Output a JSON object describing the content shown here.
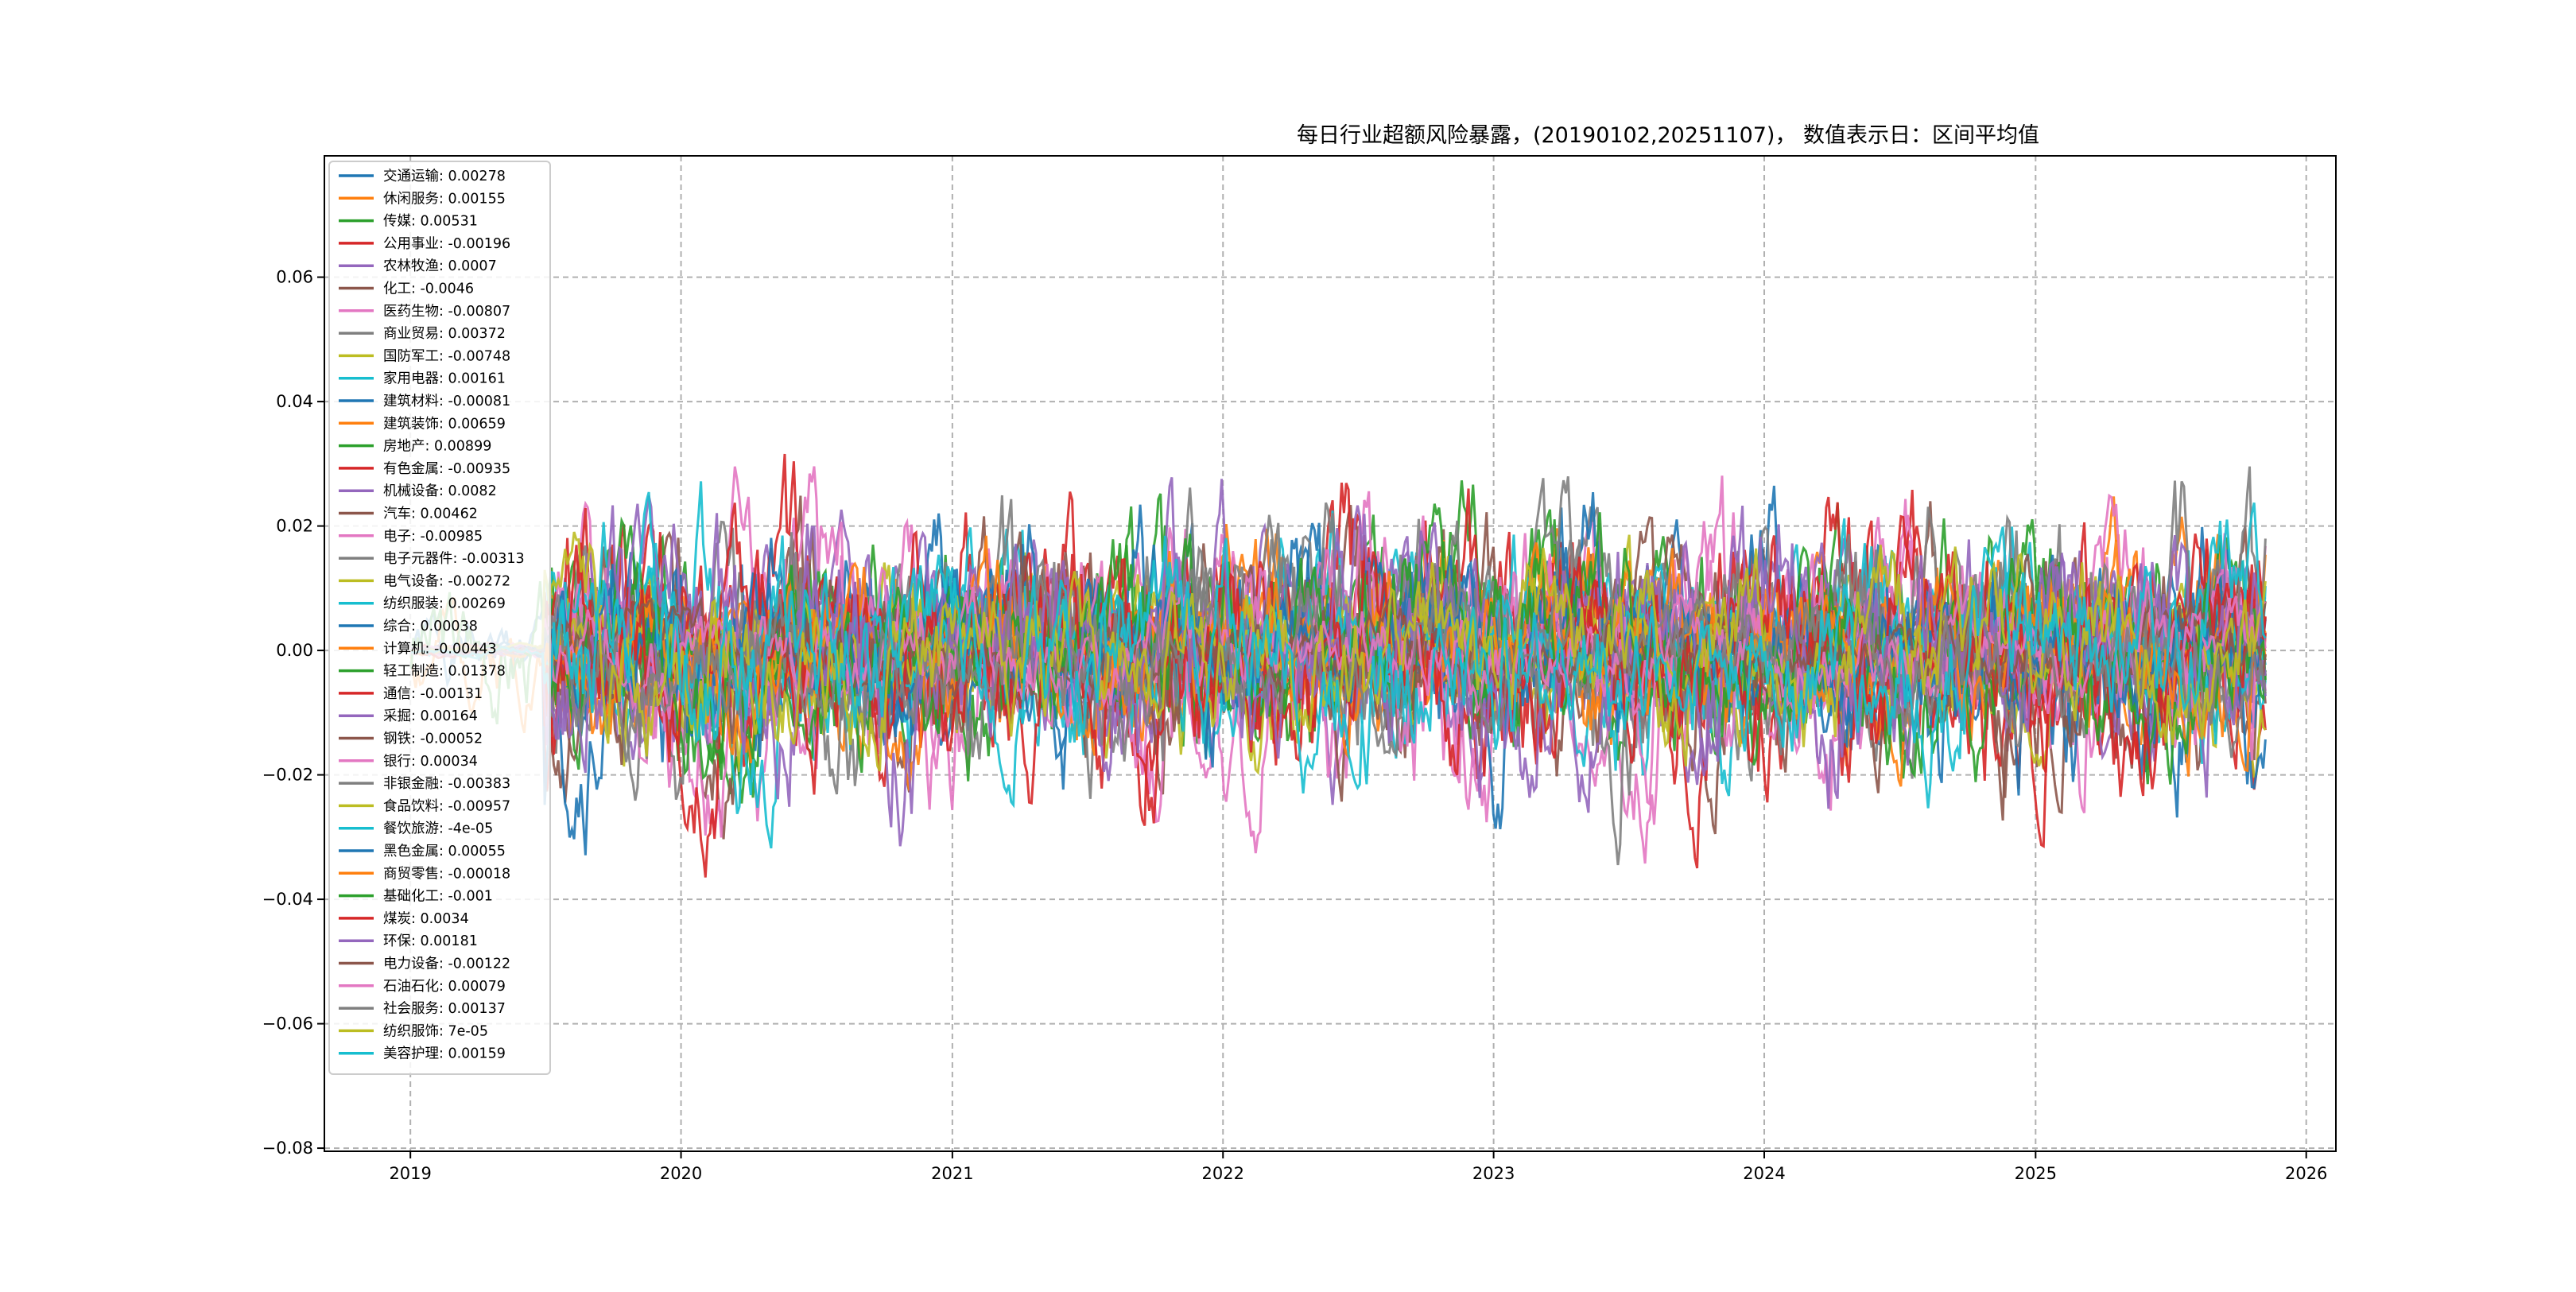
{
  "chart_data": {
    "type": "line",
    "title": "每日行业超额风险暴露，(20190102,20251107)，  数值表示日：区间平均值",
    "xlabel": "",
    "ylabel": "",
    "x_ticks": [
      "2019",
      "2020",
      "2021",
      "2022",
      "2023",
      "2024",
      "2025",
      "2026"
    ],
    "y_ticks": [
      "0.06",
      "0.04",
      "0.02",
      "0.00",
      "−0.02",
      "−0.04",
      "−0.06",
      "−0.08"
    ],
    "x_range": [
      "2018-09-07",
      "2026-02-10"
    ],
    "ylim": [
      -0.0805,
      0.0795
    ],
    "grid": true,
    "legend_position": "upper-left",
    "series": [
      {
        "name": "交通运输",
        "value": "0.00278",
        "color": "#1f77b4"
      },
      {
        "name": "休闲服务",
        "value": "0.00155",
        "color": "#ff7f0e"
      },
      {
        "name": "传媒",
        "value": "0.00531",
        "color": "#2ca02c"
      },
      {
        "name": "公用事业",
        "value": "-0.00196",
        "color": "#d62728"
      },
      {
        "name": "农林牧渔",
        "value": "0.0007",
        "color": "#9467bd"
      },
      {
        "name": "化工",
        "value": "-0.0046",
        "color": "#8c564b"
      },
      {
        "name": "医药生物",
        "value": "-0.00807",
        "color": "#e377c2"
      },
      {
        "name": "商业贸易",
        "value": "0.00372",
        "color": "#7f7f7f"
      },
      {
        "name": "国防军工",
        "value": "-0.00748",
        "color": "#bcbd22"
      },
      {
        "name": "家用电器",
        "value": "0.00161",
        "color": "#17becf"
      },
      {
        "name": "建筑材料",
        "value": "-0.00081",
        "color": "#1f77b4"
      },
      {
        "name": "建筑装饰",
        "value": "0.00659",
        "color": "#ff7f0e"
      },
      {
        "name": "房地产",
        "value": "0.00899",
        "color": "#2ca02c"
      },
      {
        "name": "有色金属",
        "value": "-0.00935",
        "color": "#d62728"
      },
      {
        "name": "机械设备",
        "value": "0.0082",
        "color": "#9467bd"
      },
      {
        "name": "汽车",
        "value": "0.00462",
        "color": "#8c564b"
      },
      {
        "name": "电子",
        "value": "-0.00985",
        "color": "#e377c2"
      },
      {
        "name": "电子元器件",
        "value": "-0.00313",
        "color": "#7f7f7f"
      },
      {
        "name": "电气设备",
        "value": "-0.00272",
        "color": "#bcbd22"
      },
      {
        "name": "纺织服装",
        "value": "0.00269",
        "color": "#17becf"
      },
      {
        "name": "综合",
        "value": "0.00038",
        "color": "#1f77b4"
      },
      {
        "name": "计算机",
        "value": "-0.00443",
        "color": "#ff7f0e"
      },
      {
        "name": "轻工制造",
        "value": "0.01378",
        "color": "#2ca02c"
      },
      {
        "name": "通信",
        "value": "-0.00131",
        "color": "#d62728"
      },
      {
        "name": "采掘",
        "value": "0.00164",
        "color": "#9467bd"
      },
      {
        "name": "钢铁",
        "value": "-0.00052",
        "color": "#8c564b"
      },
      {
        "name": "银行",
        "value": "0.00034",
        "color": "#e377c2"
      },
      {
        "name": "非银金融",
        "value": "-0.00383",
        "color": "#7f7f7f"
      },
      {
        "name": "食品饮料",
        "value": "-0.00957",
        "color": "#bcbd22"
      },
      {
        "name": "餐饮旅游",
        "value": "-4e-05",
        "color": "#17becf"
      },
      {
        "name": "黑色金属",
        "value": "0.00055",
        "color": "#1f77b4"
      },
      {
        "name": "商贸零售",
        "value": "-0.00018",
        "color": "#ff7f0e"
      },
      {
        "name": "基础化工",
        "value": "-0.001",
        "color": "#2ca02c"
      },
      {
        "name": "煤炭",
        "value": "0.0034",
        "color": "#d62728"
      },
      {
        "name": "环保",
        "value": "0.00181",
        "color": "#9467bd"
      },
      {
        "name": "电力设备",
        "value": "-0.00122",
        "color": "#8c564b"
      },
      {
        "name": "石油石化",
        "value": "0.00079",
        "color": "#e377c2"
      },
      {
        "name": "社会服务",
        "value": "0.00137",
        "color": "#7f7f7f"
      },
      {
        "name": "纺织服饰",
        "value": "7e-05",
        "color": "#bcbd22"
      },
      {
        "name": "美容护理",
        "value": "0.00159",
        "color": "#17becf"
      }
    ]
  }
}
